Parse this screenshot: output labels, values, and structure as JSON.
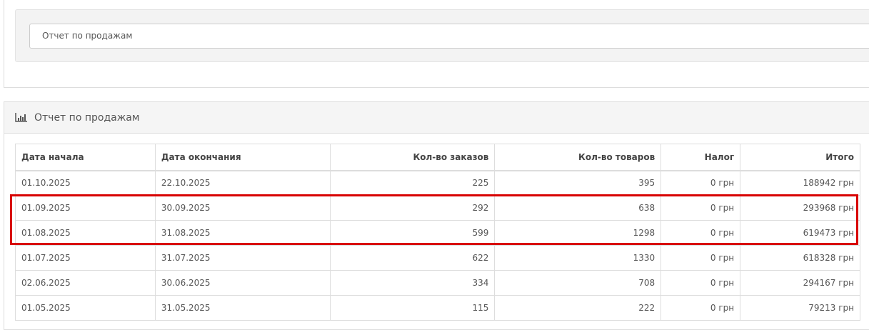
{
  "filter": {
    "report_select": "Отчет по продажам"
  },
  "report": {
    "title": "Отчет по продажам",
    "icon": "bar-chart-icon",
    "columns": [
      "Дата начала",
      "Дата окончания",
      "Кол-во заказов",
      "Кол-во товаров",
      "Налог",
      "Итого"
    ],
    "rows": [
      [
        "01.10.2025",
        "22.10.2025",
        "225",
        "395",
        "0 грн",
        "188942 грн"
      ],
      [
        "01.09.2025",
        "30.09.2025",
        "292",
        "638",
        "0 грн",
        "293968 грн"
      ],
      [
        "01.08.2025",
        "31.08.2025",
        "599",
        "1298",
        "0 грн",
        "619473 грн"
      ],
      [
        "01.07.2025",
        "31.07.2025",
        "622",
        "1330",
        "0 грн",
        "618328 грн"
      ],
      [
        "02.06.2025",
        "30.06.2025",
        "334",
        "708",
        "0 грн",
        "294167 грн"
      ],
      [
        "01.05.2025",
        "31.05.2025",
        "115",
        "222",
        "0 грн",
        "79213 грн"
      ]
    ]
  },
  "highlight_color": "#d80000"
}
